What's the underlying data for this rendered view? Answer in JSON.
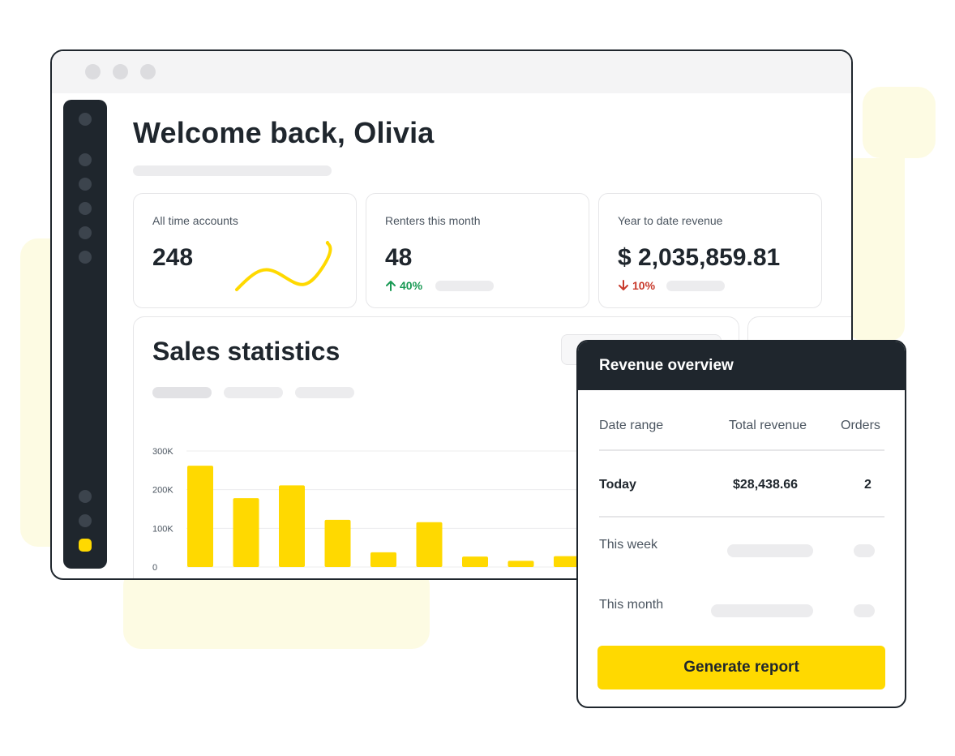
{
  "colors": {
    "accent": "#ffd900",
    "dark": "#1f262d",
    "up": "#1a9a55",
    "down": "#c8392b"
  },
  "header": {
    "welcome": "Welcome back, Olivia"
  },
  "cards": [
    {
      "label": "All time accounts",
      "value": "248"
    },
    {
      "label": "Renters this month",
      "value": "48",
      "trend": "40%",
      "trend_direction": "up"
    },
    {
      "label": "Year to date revenue",
      "value": "$ 2,035,859.81",
      "trend": "10%",
      "trend_direction": "down"
    }
  ],
  "sales": {
    "title": "Sales statistics"
  },
  "chart_data": {
    "type": "bar",
    "title": "Sales statistics",
    "ylim": [
      0,
      300000
    ],
    "yticks": [
      {
        "label": "0",
        "value": 0
      },
      {
        "label": "100K",
        "value": 100000
      },
      {
        "label": "200K",
        "value": 200000
      },
      {
        "label": "300K",
        "value": 300000
      }
    ],
    "values": [
      262000,
      178000,
      211000,
      122000,
      38000,
      116000,
      27000,
      16000,
      28000
    ],
    "color": "#ffd900",
    "grid": true
  },
  "revenue": {
    "title": "Revenue overview",
    "columns": [
      "Date range",
      "Total revenue",
      "Orders"
    ],
    "today": {
      "label": "Today",
      "total": "$28,438.66",
      "orders": "2"
    },
    "week_label": "This week",
    "month_label": "This month",
    "button": "Generate report"
  }
}
